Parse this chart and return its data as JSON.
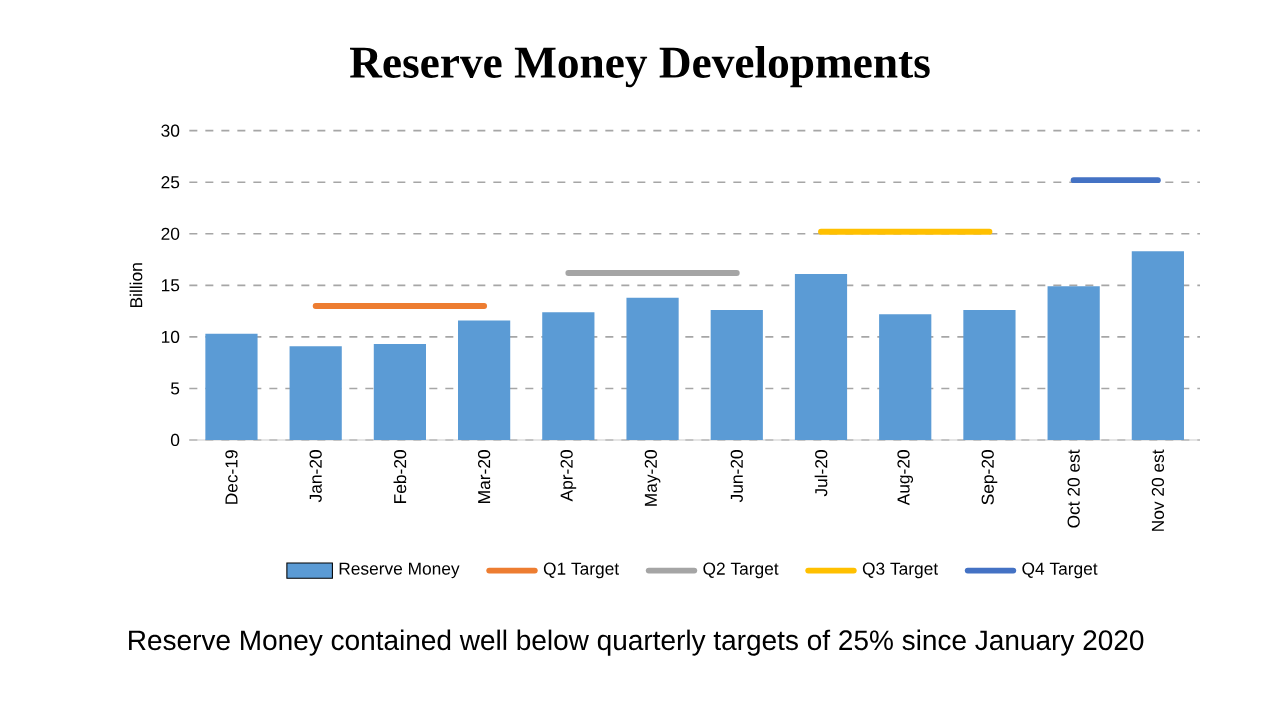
{
  "chart_data": {
    "type": "bar",
    "title": "Reserve Money Developments",
    "ylabel": "Billion",
    "categories": [
      "Dec-19",
      "Jan-20",
      "Feb-20",
      "Mar-20",
      "Apr-20",
      "May-20",
      "Jun-20",
      "Jul-20",
      "Aug-20",
      "Sep-20",
      "Oct 20 est",
      "Nov 20 est"
    ],
    "series": [
      {
        "name": "Reserve Money",
        "color": "#5b9bd5",
        "values": [
          10.3,
          9.1,
          9.3,
          11.6,
          12.4,
          13.8,
          12.6,
          16.1,
          12.2,
          12.6,
          14.9,
          18.3
        ]
      },
      {
        "name": "Q1 Target",
        "type": "line",
        "color": "#ed7d31",
        "values": [
          null,
          13.0,
          13.0,
          13.0,
          null,
          null,
          null,
          null,
          null,
          null,
          null,
          null
        ]
      },
      {
        "name": "Q2 Target",
        "type": "line",
        "color": "#a5a5a5",
        "values": [
          null,
          null,
          null,
          null,
          16.2,
          16.2,
          16.2,
          null,
          null,
          null,
          null,
          null
        ]
      },
      {
        "name": "Q3 Target",
        "type": "line",
        "color": "#ffc000",
        "values": [
          null,
          null,
          null,
          null,
          null,
          null,
          null,
          20.2,
          20.2,
          20.2,
          null,
          null
        ]
      },
      {
        "name": "Q4 Target",
        "type": "line",
        "color": "#4472c4",
        "values": [
          null,
          null,
          null,
          null,
          null,
          null,
          null,
          null,
          null,
          null,
          25.2,
          25.2
        ]
      }
    ],
    "ylim": [
      0,
      30
    ],
    "yticks": [
      0,
      5,
      10,
      15,
      20,
      25,
      30
    ],
    "grid": "y",
    "legend": "bottom",
    "annotations": [
      "Reserve Money contained well below quarterly targets of 25% since January 2020"
    ]
  }
}
